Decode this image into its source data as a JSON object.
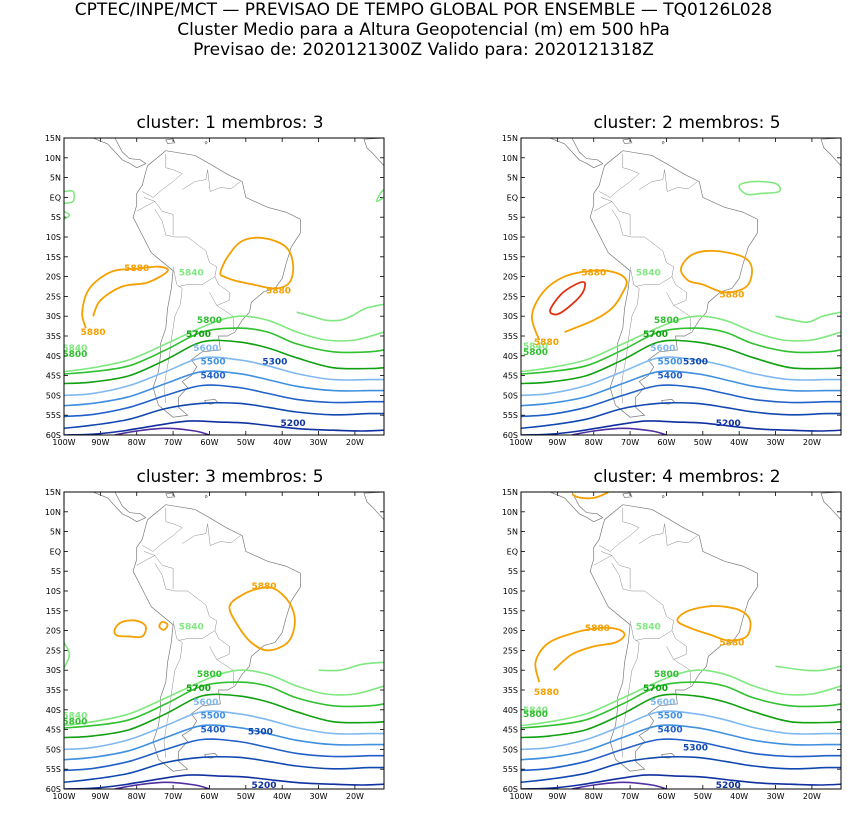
{
  "header": {
    "line1": "CPTEC/INPE/MCT — PREVISAO DE TEMPO GLOBAL POR ENSEMBLE — TQ0126L028",
    "line2": "Cluster Medio para a Altura Geopotencial (m) em 500 hPa",
    "line3": "Previsao de: 2020121300Z    Valido para: 2020121318Z"
  },
  "axes": {
    "lat_labels": [
      "15N",
      "10N",
      "5N",
      "EQ",
      "5S",
      "10S",
      "15S",
      "20S",
      "25S",
      "30S",
      "35S",
      "40S",
      "45S",
      "50S",
      "55S",
      "60S"
    ],
    "lon_labels": [
      "100W",
      "90W",
      "80W",
      "70W",
      "60W",
      "50W",
      "40W",
      "30W",
      "20W"
    ]
  },
  "contour_levels": [
    {
      "value": "5880",
      "color": "#f5a000"
    },
    {
      "value": "5840",
      "color": "#80e880"
    },
    {
      "value": "5800",
      "color": "#30c030"
    },
    {
      "value": "5700",
      "color": "#10a010"
    },
    {
      "value": "5600",
      "color": "#80b8f0"
    },
    {
      "value": "5500",
      "color": "#4090e0"
    },
    {
      "value": "5400",
      "color": "#2060c8"
    },
    {
      "value": "5300",
      "color": "#1048b0"
    },
    {
      "value": "5200",
      "color": "#1030a0"
    }
  ],
  "panels": [
    {
      "title": "cluster: 1   membros: 3"
    },
    {
      "title": "cluster: 2   membros: 5"
    },
    {
      "title": "cluster: 3   membros: 5"
    },
    {
      "title": "cluster: 4   membros: 2"
    }
  ]
}
